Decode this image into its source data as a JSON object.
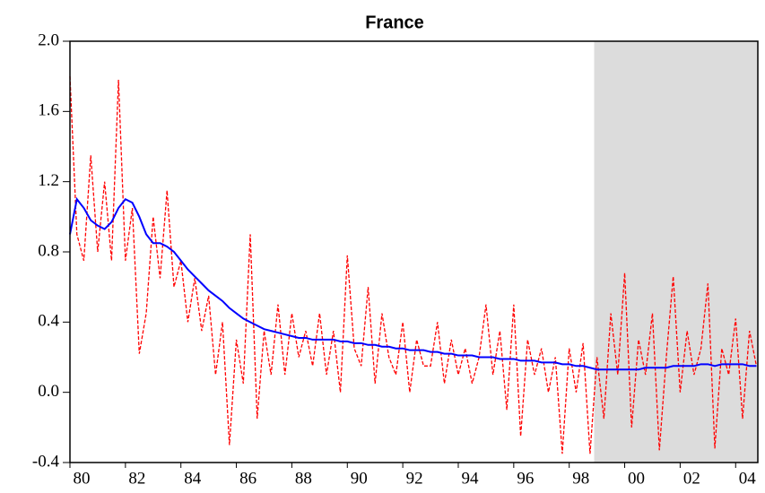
{
  "chart_data": {
    "type": "line",
    "title": "France",
    "x": [
      1980,
      1980.25,
      1980.5,
      1980.75,
      1981,
      1981.25,
      1981.5,
      1981.75,
      1982,
      1982.25,
      1982.5,
      1982.75,
      1983,
      1983.25,
      1983.5,
      1983.75,
      1984,
      1984.25,
      1984.5,
      1984.75,
      1985,
      1985.25,
      1985.5,
      1985.75,
      1986,
      1986.25,
      1986.5,
      1986.75,
      1987,
      1987.25,
      1987.5,
      1987.75,
      1988,
      1988.25,
      1988.5,
      1988.75,
      1989,
      1989.25,
      1989.5,
      1989.75,
      1990,
      1990.25,
      1990.5,
      1990.75,
      1991,
      1991.25,
      1991.5,
      1991.75,
      1992,
      1992.25,
      1992.5,
      1992.75,
      1993,
      1993.25,
      1993.5,
      1993.75,
      1994,
      1994.25,
      1994.5,
      1994.75,
      1995,
      1995.25,
      1995.5,
      1995.75,
      1996,
      1996.25,
      1996.5,
      1996.75,
      1997,
      1997.25,
      1997.5,
      1997.75,
      1998,
      1998.25,
      1998.5,
      1998.75,
      1999,
      1999.25,
      1999.5,
      1999.75,
      2000,
      2000.25,
      2000.5,
      2000.75,
      2001,
      2001.25,
      2001.5,
      2001.75,
      2002,
      2002.25,
      2002.5,
      2002.75,
      2003,
      2003.25,
      2003.5,
      2003.75,
      2004,
      2004.25,
      2004.5,
      2004.75
    ],
    "series": [
      {
        "color": "#ff0000",
        "style": "dashed",
        "values": [
          1.8,
          0.9,
          0.75,
          1.35,
          0.8,
          1.2,
          0.75,
          1.78,
          0.75,
          1.05,
          0.22,
          0.45,
          1.0,
          0.65,
          1.15,
          0.6,
          0.75,
          0.4,
          0.65,
          0.35,
          0.55,
          0.1,
          0.4,
          -0.3,
          0.3,
          0.05,
          0.9,
          -0.15,
          0.35,
          0.1,
          0.5,
          0.1,
          0.45,
          0.2,
          0.35,
          0.15,
          0.45,
          0.1,
          0.35,
          0.0,
          0.78,
          0.25,
          0.15,
          0.6,
          0.05,
          0.45,
          0.2,
          0.1,
          0.4,
          0.0,
          0.3,
          0.15,
          0.15,
          0.4,
          0.05,
          0.3,
          0.1,
          0.25,
          0.05,
          0.2,
          0.5,
          0.1,
          0.35,
          -0.1,
          0.5,
          -0.25,
          0.3,
          0.1,
          0.25,
          0.0,
          0.2,
          -0.35,
          0.25,
          0.0,
          0.28,
          -0.35,
          0.2,
          -0.15,
          0.45,
          0.1,
          0.68,
          -0.2,
          0.3,
          0.1,
          0.45,
          -0.33,
          0.2,
          0.66,
          0.0,
          0.35,
          0.1,
          0.25,
          0.62,
          -0.32,
          0.25,
          0.1,
          0.42,
          -0.15,
          0.35,
          0.15
        ]
      },
      {
        "color": "#0000ff",
        "style": "solid",
        "values": [
          0.9,
          1.1,
          1.05,
          0.98,
          0.95,
          0.93,
          0.97,
          1.05,
          1.1,
          1.08,
          1.0,
          0.9,
          0.85,
          0.85,
          0.83,
          0.8,
          0.75,
          0.7,
          0.66,
          0.62,
          0.58,
          0.55,
          0.52,
          0.48,
          0.45,
          0.42,
          0.4,
          0.38,
          0.36,
          0.35,
          0.34,
          0.33,
          0.32,
          0.31,
          0.31,
          0.3,
          0.3,
          0.3,
          0.3,
          0.29,
          0.29,
          0.28,
          0.28,
          0.27,
          0.27,
          0.26,
          0.26,
          0.25,
          0.25,
          0.24,
          0.24,
          0.24,
          0.23,
          0.23,
          0.22,
          0.22,
          0.21,
          0.21,
          0.21,
          0.2,
          0.2,
          0.2,
          0.19,
          0.19,
          0.19,
          0.18,
          0.18,
          0.18,
          0.17,
          0.17,
          0.17,
          0.16,
          0.16,
          0.15,
          0.15,
          0.14,
          0.13,
          0.13,
          0.13,
          0.13,
          0.13,
          0.13,
          0.13,
          0.14,
          0.14,
          0.14,
          0.14,
          0.15,
          0.15,
          0.15,
          0.15,
          0.16,
          0.16,
          0.15,
          0.16,
          0.16,
          0.16,
          0.16,
          0.15,
          0.15
        ]
      }
    ],
    "shaded_region": [
      1998.9,
      2004.8
    ],
    "shade_color": "#dcdcdc",
    "xlim": [
      1980,
      2004.8
    ],
    "xticks": [
      {
        "value": 1980,
        "label": "80"
      },
      {
        "value": 1982,
        "label": "82"
      },
      {
        "value": 1984,
        "label": "84"
      },
      {
        "value": 1986,
        "label": "86"
      },
      {
        "value": 1988,
        "label": "88"
      },
      {
        "value": 1990,
        "label": "90"
      },
      {
        "value": 1992,
        "label": "92"
      },
      {
        "value": 1994,
        "label": "94"
      },
      {
        "value": 1996,
        "label": "96"
      },
      {
        "value": 1998,
        "label": "98"
      },
      {
        "value": 2000,
        "label": "00"
      },
      {
        "value": 2002,
        "label": "02"
      },
      {
        "value": 2004,
        "label": "04"
      }
    ],
    "ylim": [
      -0.4,
      2.0
    ],
    "yticks": [
      {
        "value": -0.4,
        "label": "-0.4"
      },
      {
        "value": 0,
        "label": "0.0"
      },
      0.4,
      0.8,
      1.2,
      1.6,
      {
        "value": 2,
        "label": "2.0"
      }
    ]
  }
}
